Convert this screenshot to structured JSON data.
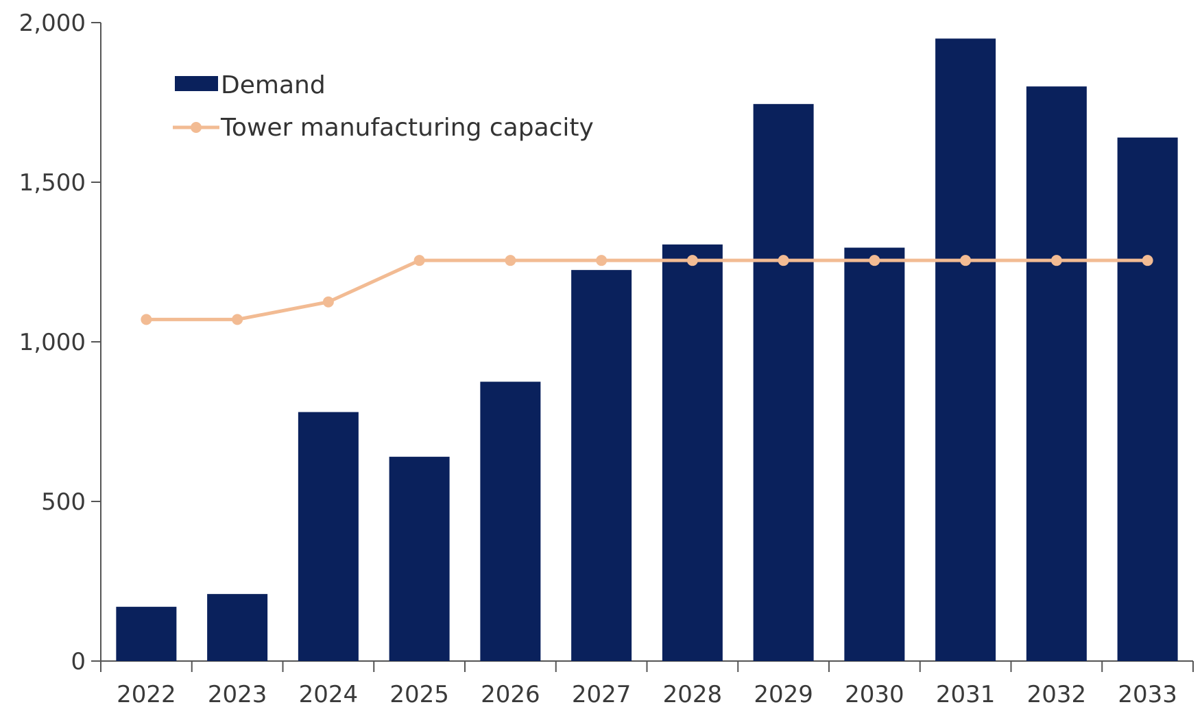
{
  "chart_data": {
    "type": "bar",
    "title": "",
    "xlabel": "",
    "ylabel": "",
    "categories": [
      "2022",
      "2023",
      "2024",
      "2025",
      "2026",
      "2027",
      "2028",
      "2029",
      "2030",
      "2031",
      "2032",
      "2033"
    ],
    "series": [
      {
        "name": "Demand",
        "type": "bar",
        "color": "#0a215c",
        "values": [
          170,
          210,
          780,
          640,
          875,
          1225,
          1305,
          1745,
          1295,
          1950,
          1800,
          1640
        ]
      },
      {
        "name": "Tower manufacturing capacity",
        "type": "line",
        "color": "#f2bb93",
        "values": [
          1070,
          1070,
          1125,
          1255,
          1255,
          1255,
          1255,
          1255,
          1255,
          1255,
          1255,
          1255
        ]
      }
    ],
    "ylim": [
      0,
      2000
    ],
    "yticks": [
      0,
      500,
      1000,
      1500,
      2000
    ],
    "ytick_labels": [
      "0",
      "500",
      "1,000",
      "1,500",
      "2,000"
    ],
    "grid": false,
    "legend_position": "top-left"
  }
}
